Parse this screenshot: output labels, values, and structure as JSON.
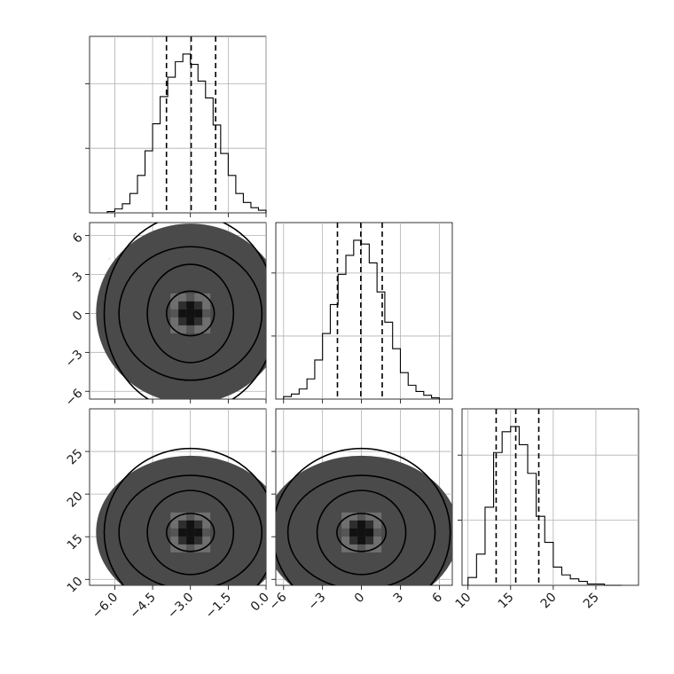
{
  "chart_data": {
    "type": "corner",
    "grid": true,
    "axes": [
      {
        "range": [
          -7,
          0
        ],
        "ticks": [
          -6.0,
          -4.5,
          -3.0,
          -1.5,
          0.0
        ],
        "tick_labels": [
          "−6.0",
          "−4.5",
          "−3.0",
          "−1.5",
          "0.0"
        ]
      },
      {
        "range": [
          -6.6,
          7.0
        ],
        "ticks": [
          -6,
          -3,
          0,
          3,
          6
        ],
        "tick_labels": [
          "−6",
          "−3",
          "0",
          "3",
          "6"
        ]
      },
      {
        "range": [
          9.3,
          30.0
        ],
        "ticks": [
          10,
          15,
          20,
          25
        ],
        "tick_labels": [
          "10",
          "15",
          "20",
          "25"
        ]
      }
    ],
    "histograms": [
      {
        "edges": [
          -6.3,
          -6.0,
          -5.7,
          -5.4,
          -5.1,
          -4.8,
          -4.5,
          -4.2,
          -3.9,
          -3.6,
          -3.3,
          -3.0,
          -2.7,
          -2.4,
          -2.1,
          -1.8,
          -1.5,
          -1.2,
          -0.9,
          -0.6,
          -0.3,
          0.0
        ],
        "counts": [
          1,
          3,
          7,
          15,
          29,
          48,
          69,
          90,
          105,
          117,
          123,
          115,
          102,
          89,
          68,
          46,
          29,
          15,
          8,
          4,
          2
        ],
        "quantiles": [
          -3.95,
          -2.97,
          -2.0
        ]
      },
      {
        "edges": [
          -6.0,
          -5.4,
          -4.8,
          -4.2,
          -3.6,
          -3.0,
          -2.4,
          -1.8,
          -1.2,
          -0.6,
          0.0,
          0.6,
          1.2,
          1.8,
          2.4,
          3.0,
          3.6,
          4.2,
          4.8,
          5.4,
          6.0
        ],
        "counts": [
          2,
          4,
          8,
          16,
          31,
          52,
          75,
          99,
          114,
          126,
          123,
          108,
          85,
          61,
          40,
          21,
          11,
          6,
          3,
          1
        ],
        "quantiles": [
          -1.85,
          -0.05,
          1.6
        ]
      },
      {
        "edges": [
          10,
          11,
          12,
          13,
          14,
          15,
          16,
          17,
          18,
          19,
          20,
          21,
          22,
          23,
          24,
          25,
          26,
          27,
          28
        ],
        "counts": [
          6,
          24,
          60,
          102,
          118,
          122,
          108,
          86,
          53,
          33,
          14,
          8,
          5,
          3,
          1,
          1,
          0,
          0
        ],
        "quantiles": [
          13.3,
          15.6,
          18.3
        ]
      }
    ],
    "scatter_panels": [
      {
        "row": 1,
        "col": 0,
        "x_mean": -3.0,
        "x_sd": 1.0,
        "y_mean": 0.0,
        "y_sd": 2.0
      },
      {
        "row": 2,
        "col": 0,
        "x_mean": -3.0,
        "x_sd": 1.0,
        "y_mean": 15.5,
        "y_sd": 2.6
      },
      {
        "row": 2,
        "col": 1,
        "x_mean": 0.0,
        "x_sd": 2.0,
        "y_mean": 15.5,
        "y_sd": 2.6
      }
    ],
    "contour_levels": [
      0.5,
      1.0,
      1.5,
      2.0
    ]
  }
}
